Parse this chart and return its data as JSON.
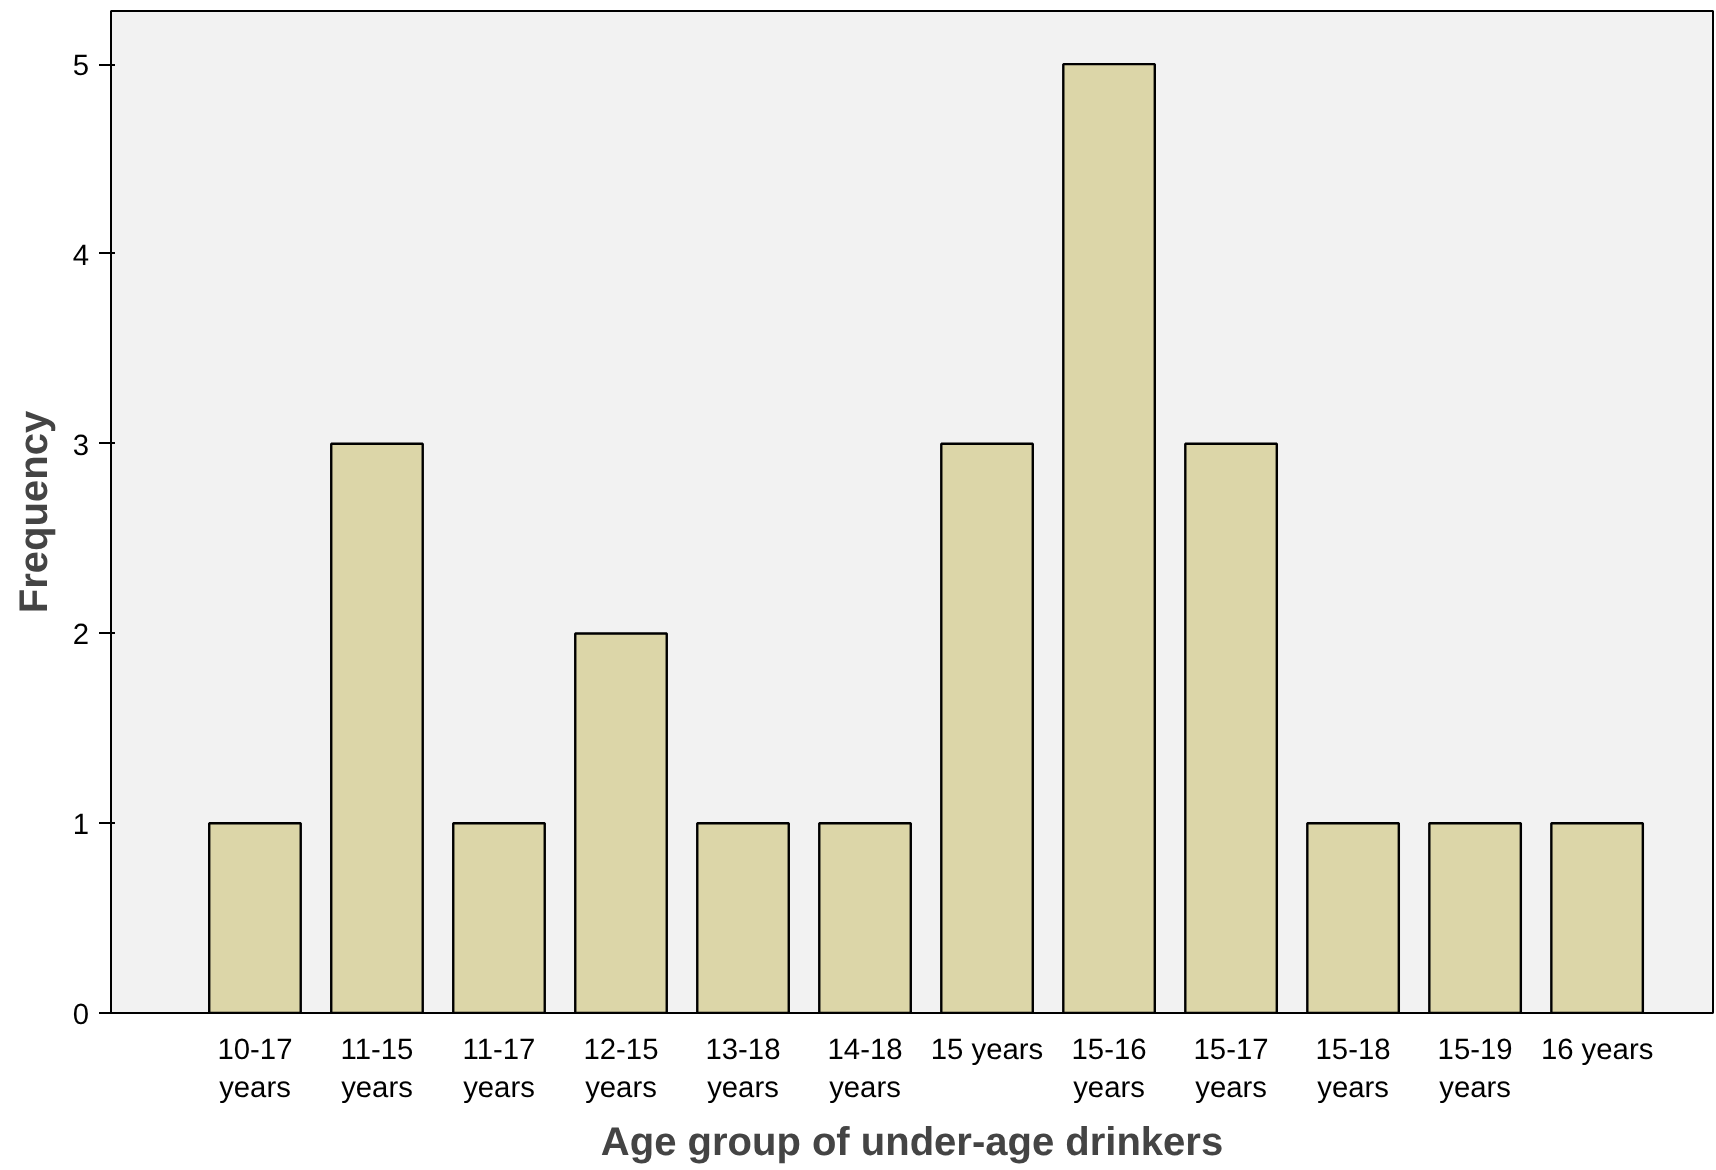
{
  "chart_data": {
    "type": "bar",
    "xlabel": "Age group of under-age drinkers",
    "ylabel": "Frequency",
    "categories": [
      "10-17 years",
      "11-15 years",
      "11-17 years",
      "12-15 years",
      "13-18 years",
      "14-18 years",
      "15 years",
      "15-16 years",
      "15-17 years",
      "15-18 years",
      "15-19 years",
      "16 years"
    ],
    "values": [
      1,
      3,
      1,
      2,
      1,
      1,
      3,
      5,
      3,
      1,
      1,
      1
    ],
    "color": "#dcd6a8",
    "ylim": [
      0,
      5.28
    ],
    "yticks": [
      0,
      1,
      2,
      3,
      4,
      5
    ],
    "grid": false
  }
}
